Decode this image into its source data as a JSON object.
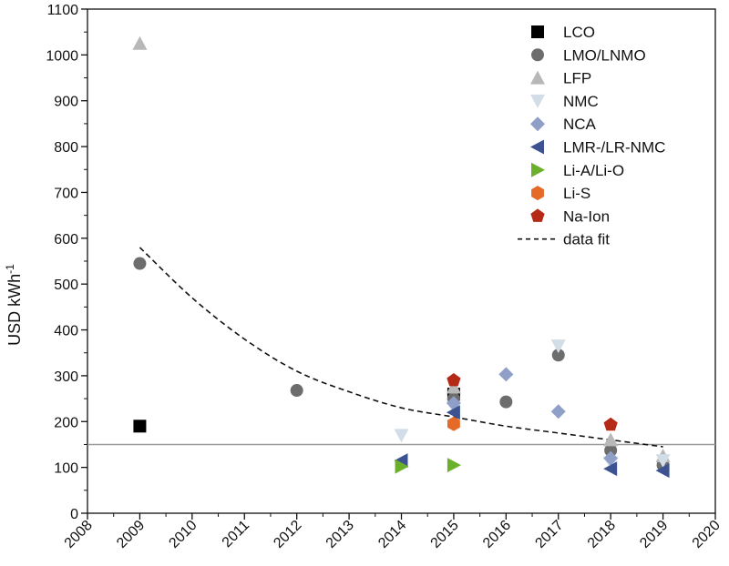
{
  "chart_data": {
    "type": "scatter",
    "title": "",
    "xlabel": "",
    "ylabel": "USD kWh",
    "ylabel_superscript": "-1",
    "xlim": [
      2008,
      2020
    ],
    "ylim": [
      0,
      1100
    ],
    "x_ticks": [
      "2008",
      "2009",
      "2010",
      "2011",
      "2012",
      "2013",
      "2014",
      "2015",
      "2016",
      "2017",
      "2018",
      "2019",
      "2020"
    ],
    "y_ticks": [
      "0",
      "100",
      "200",
      "300",
      "400",
      "500",
      "600",
      "700",
      "800",
      "900",
      "1000",
      "1100"
    ],
    "grid": false,
    "legend_position": "top-right",
    "reference_line": {
      "y": 150,
      "color": "#9a9a9a"
    },
    "series": [
      {
        "name": "LCO",
        "marker": "square",
        "color": "#000000",
        "points": [
          [
            2009,
            190
          ],
          [
            2015,
            260
          ]
        ]
      },
      {
        "name": "LMO/LNMO",
        "marker": "circle",
        "color": "#6d6d6d",
        "points": [
          [
            2009,
            545
          ],
          [
            2012,
            268
          ],
          [
            2015,
            250
          ],
          [
            2016,
            243
          ],
          [
            2017,
            345
          ],
          [
            2018,
            137
          ],
          [
            2019,
            105
          ]
        ]
      },
      {
        "name": "LFP",
        "marker": "triangle-up",
        "color": "#b8b8b8",
        "points": [
          [
            2009,
            1025
          ],
          [
            2015,
            275
          ],
          [
            2018,
            160
          ],
          [
            2019,
            125
          ]
        ]
      },
      {
        "name": "NMC",
        "marker": "triangle-down",
        "color": "#d2dde8",
        "points": [
          [
            2014,
            170
          ],
          [
            2015,
            230
          ],
          [
            2017,
            365
          ],
          [
            2018,
            110
          ],
          [
            2019,
            115
          ]
        ]
      },
      {
        "name": "NCA",
        "marker": "diamond",
        "color": "#8f9fc8",
        "points": [
          [
            2015,
            240
          ],
          [
            2016,
            303
          ],
          [
            2017,
            222
          ],
          [
            2018,
            120
          ]
        ]
      },
      {
        "name": "LMR-/LR-NMC",
        "marker": "triangle-left",
        "color": "#3d5290",
        "points": [
          [
            2014,
            115
          ],
          [
            2015,
            220
          ],
          [
            2018,
            97
          ],
          [
            2019,
            93
          ]
        ]
      },
      {
        "name": "Li-A/Li-O",
        "marker": "triangle-right",
        "color": "#6ab02a",
        "points": [
          [
            2014,
            102
          ],
          [
            2015,
            105
          ]
        ]
      },
      {
        "name": "Li-S",
        "marker": "hexagon",
        "color": "#e56a28",
        "points": [
          [
            2015,
            195
          ]
        ]
      },
      {
        "name": "Na-Ion",
        "marker": "pentagon",
        "color": "#b52a17",
        "points": [
          [
            2015,
            290
          ],
          [
            2018,
            193
          ]
        ]
      }
    ],
    "fit": {
      "name": "data fit",
      "style": "dashed",
      "color": "#111111",
      "points": [
        [
          2009,
          580
        ],
        [
          2010,
          470
        ],
        [
          2011,
          380
        ],
        [
          2012,
          310
        ],
        [
          2013,
          265
        ],
        [
          2014,
          230
        ],
        [
          2015,
          210
        ],
        [
          2016,
          190
        ],
        [
          2017,
          175
        ],
        [
          2018,
          160
        ],
        [
          2019,
          145
        ]
      ]
    }
  }
}
